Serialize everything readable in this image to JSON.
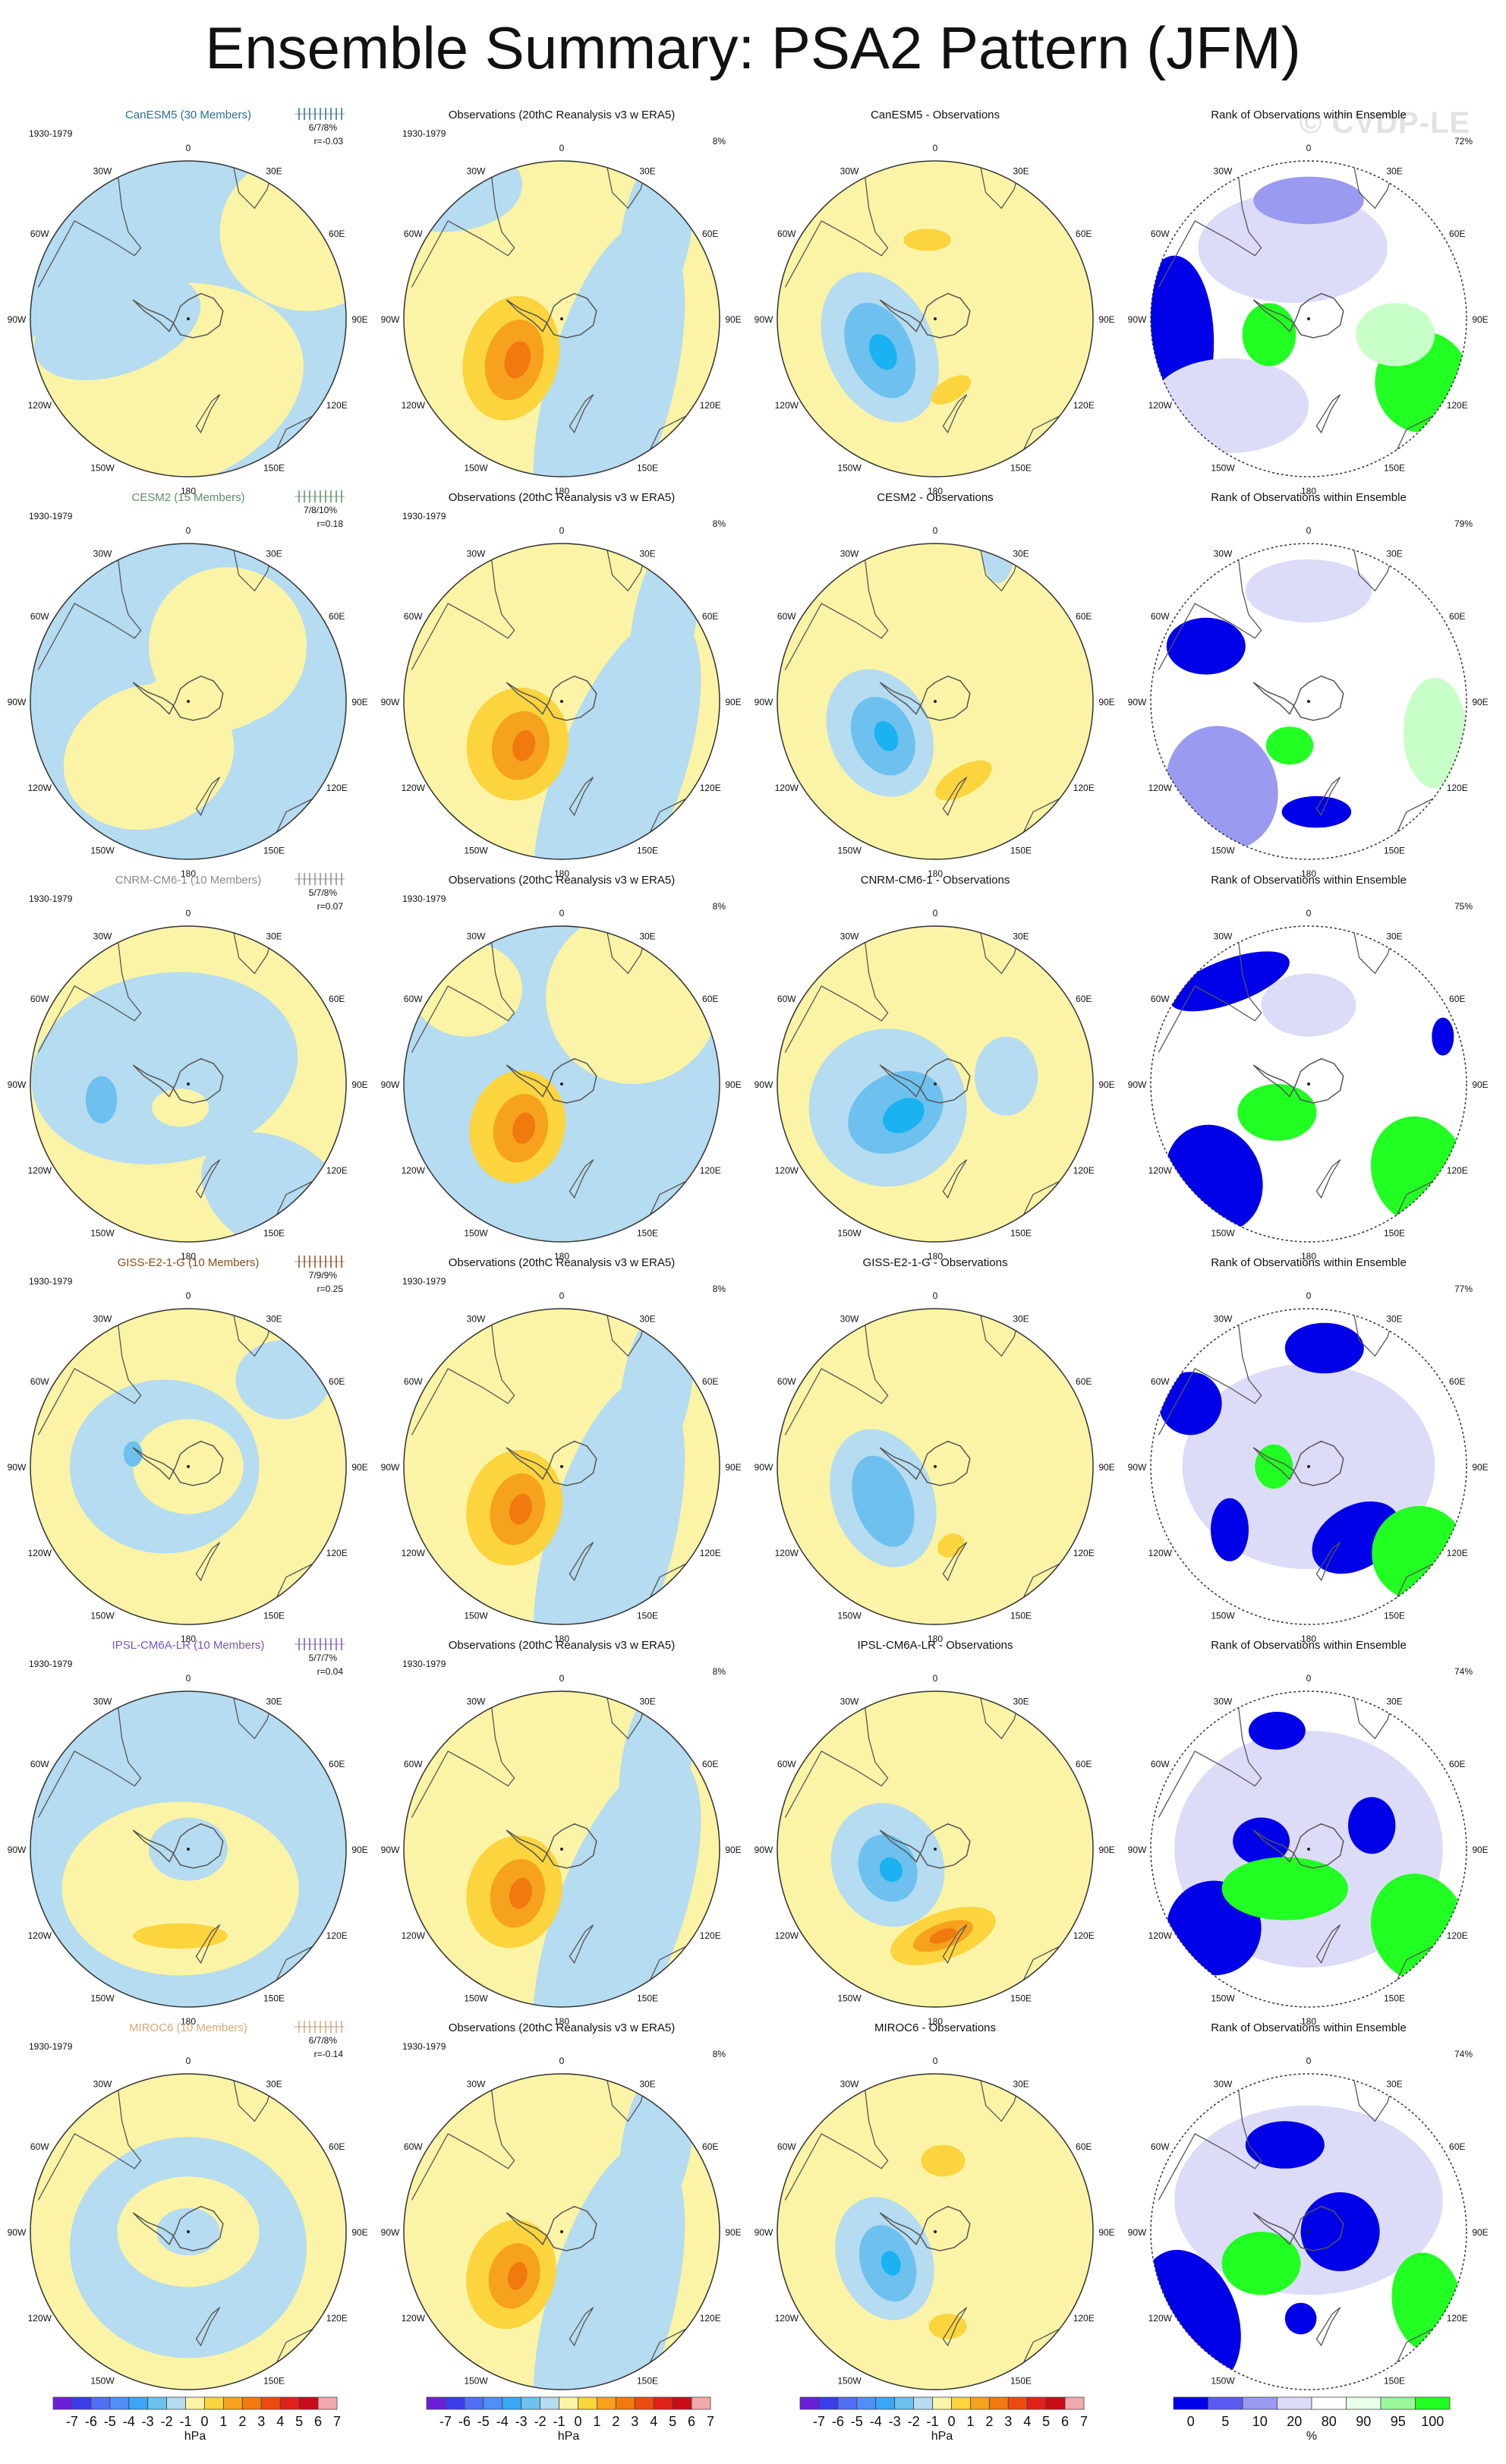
{
  "title": "Ensemble Summary: PSA2 Pattern (JFM)",
  "watermark": "© CVDP-LE",
  "period": "1930-1979",
  "obs_title": "Observations (20thC Reanalysis v3 w ERA5)",
  "obs_pct": "8%",
  "rank_title": "Rank of Observations within Ensemble",
  "diff_suffix": " - Observations",
  "lon_labels": [
    "0",
    "30E",
    "60E",
    "90E",
    "120E",
    "150E",
    "180",
    "150W",
    "120W",
    "90W",
    "60W",
    "30W"
  ],
  "colors": {
    "land": "#fbf4a6",
    "ocean": "#b5dcf0",
    "neg1": "#6ec1ee",
    "neg2": "#1ab2f0",
    "pos1": "#fbd43e",
    "pos2": "#f6a21f",
    "pos3": "#f07a0e",
    "rank_low": "#0000e8",
    "rank_mid": "#9a9af0",
    "rank_light": "#dcdcf8",
    "rank_green": "#22ff22",
    "rank_lgreen": "#c8ffc8"
  },
  "rows": [
    {
      "model": "CanESM5 (30 Members)",
      "color": "#2a6f90",
      "stats": "6/7/8%",
      "r": "r=-0.03",
      "rank_pct": "72%"
    },
    {
      "model": "CESM2 (15 Members)",
      "color": "#5a9060",
      "stats": "7/8/10%",
      "r": "r=0.18",
      "rank_pct": "79%"
    },
    {
      "model": "CNRM-CM6-1 (10 Members)",
      "color": "#8a8a8a",
      "stats": "5/7/8%",
      "r": "r=0.07",
      "rank_pct": "75%"
    },
    {
      "model": "GISS-E2-1-G (10 Members)",
      "color": "#8a4a1a",
      "stats": "7/9/9%",
      "r": "r=0.25",
      "rank_pct": "77%"
    },
    {
      "model": "IPSL-CM6A-LR (10 Members)",
      "color": "#7a52c8",
      "stats": "5/7/7%",
      "r": "r=0.04",
      "rank_pct": "74%"
    },
    {
      "model": "MIROC6 (10 Members)",
      "color": "#d8a878",
      "stats": "6/7/8%",
      "r": "r=-0.14",
      "rank_pct": "74%"
    }
  ],
  "colorbar_hpa": {
    "labels": [
      "-7",
      "-6",
      "-5",
      "-4",
      "-3",
      "-2",
      "-1",
      "0",
      "1",
      "2",
      "3",
      "4",
      "5",
      "6",
      "7"
    ],
    "unit": "hPa",
    "colors": [
      "#6b1fd6",
      "#3a3ee8",
      "#4f6ef2",
      "#4f8ef4",
      "#3aa6f5",
      "#6ec1ee",
      "#b5dcf0",
      "#fbf4a6",
      "#fbd43e",
      "#f6a21f",
      "#f07a0e",
      "#ed4a12",
      "#e0201a",
      "#c80c18",
      "#f2a9ac"
    ]
  },
  "colorbar_rank": {
    "labels": [
      "0",
      "5",
      "10",
      "20",
      "80",
      "90",
      "95",
      "100"
    ],
    "unit": "%",
    "colors": [
      "#0000e8",
      "#5a5af0",
      "#9a9af0",
      "#dcdcf8",
      "#ffffff",
      "#e8ffe8",
      "#9af79a",
      "#22ff22"
    ]
  }
}
